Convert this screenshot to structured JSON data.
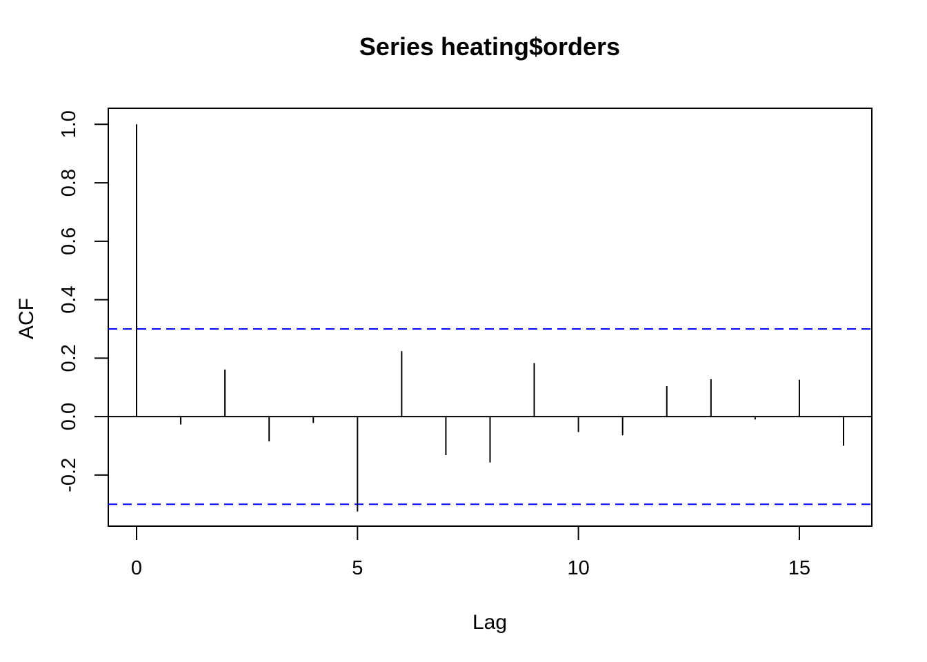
{
  "chart_data": {
    "type": "bar",
    "title": "Series  heating$orders",
    "xlabel": "Lag",
    "ylabel": "ACF",
    "xlim": [
      -0.64,
      16.64
    ],
    "ylim": [
      -0.375,
      1.055
    ],
    "x_ticks": [
      0,
      5,
      10,
      15
    ],
    "x_tick_labels": [
      "0",
      "5",
      "10",
      "15"
    ],
    "y_ticks": [
      -0.2,
      0.0,
      0.2,
      0.4,
      0.6,
      0.8,
      1.0
    ],
    "y_tick_labels": [
      "-0.2",
      "0.0",
      "0.2",
      "0.4",
      "0.6",
      "0.8",
      "1.0"
    ],
    "lags": [
      0,
      1,
      2,
      3,
      4,
      5,
      6,
      7,
      8,
      9,
      10,
      11,
      12,
      13,
      14,
      15,
      16
    ],
    "acf": [
      1.0,
      -0.027,
      0.161,
      -0.085,
      -0.022,
      -0.325,
      0.224,
      -0.132,
      -0.157,
      0.183,
      -0.053,
      -0.064,
      0.104,
      0.128,
      -0.01,
      0.126,
      -0.1
    ],
    "confidence_band": 0.3,
    "colors": {
      "bars": "#000000",
      "confidence": "#0000ff",
      "zero_line": "#000000"
    },
    "grid": false
  }
}
